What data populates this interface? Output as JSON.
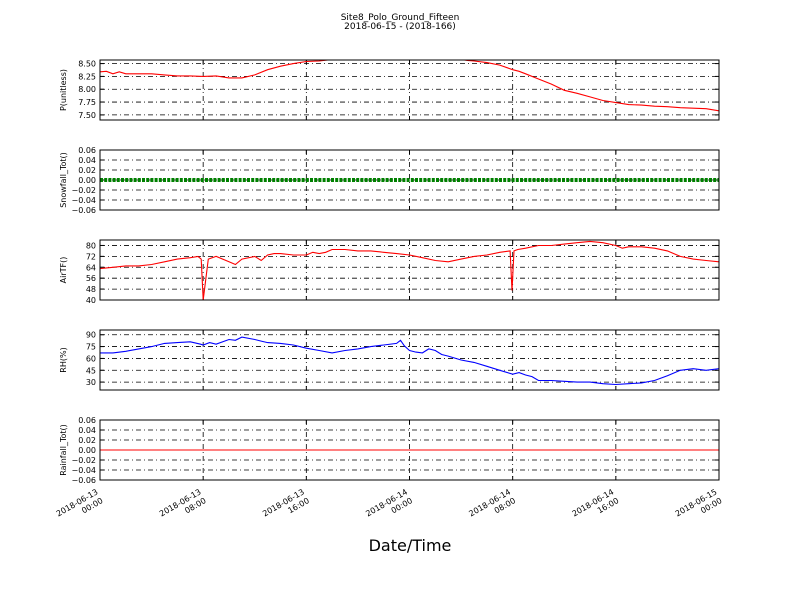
{
  "title": "Site8_Polo_Ground_Fifteen",
  "subtitle": "2018-06-15 - (2018-166)",
  "xlabel": "Date/Time",
  "x_ticks": [
    {
      "t": 0,
      "line1": "2018-06-13",
      "line2": "00:00"
    },
    {
      "t": 8,
      "line1": "2018-06-13",
      "line2": "08:00"
    },
    {
      "t": 16,
      "line1": "2018-06-13",
      "line2": "16:00"
    },
    {
      "t": 24,
      "line1": "2018-06-14",
      "line2": "00:00"
    },
    {
      "t": 32,
      "line1": "2018-06-14",
      "line2": "08:00"
    },
    {
      "t": 40,
      "line1": "2018-06-14",
      "line2": "16:00"
    },
    {
      "t": 48,
      "line1": "2018-06-15",
      "line2": "00:00"
    }
  ],
  "chart_data": [
    {
      "type": "line",
      "ylabel": "P(unitless)",
      "ylim": [
        7.4,
        8.57
      ],
      "yticks": [
        7.5,
        7.75,
        8.0,
        8.25,
        8.5
      ],
      "ytick_labels": [
        "7.50",
        "7.75",
        "8.00",
        "8.25",
        "8.50"
      ],
      "grid": true,
      "color": "#ff0000",
      "series": [
        {
          "x": [
            0,
            0.5,
            1,
            1.5,
            2,
            3,
            4,
            5,
            6,
            7,
            8,
            9,
            10,
            11,
            12,
            13,
            14,
            15,
            16,
            17,
            18,
            20,
            22,
            24,
            26,
            28,
            28.5,
            29,
            30,
            31,
            32,
            32.5,
            33,
            34,
            35,
            36,
            37,
            38,
            39,
            40,
            41,
            42,
            43,
            44,
            45,
            46,
            47,
            48
          ],
          "y": [
            8.34,
            8.35,
            8.3,
            8.34,
            8.3,
            8.3,
            8.3,
            8.28,
            8.26,
            8.26,
            8.25,
            8.26,
            8.22,
            8.22,
            8.28,
            8.38,
            8.45,
            8.5,
            8.54,
            8.55,
            8.58,
            8.59,
            8.59,
            8.59,
            8.59,
            8.58,
            8.56,
            8.55,
            8.52,
            8.47,
            8.38,
            8.35,
            8.3,
            8.2,
            8.1,
            7.98,
            7.92,
            7.85,
            7.78,
            7.74,
            7.7,
            7.69,
            7.67,
            7.66,
            7.64,
            7.63,
            7.62,
            7.58
          ]
        }
      ]
    },
    {
      "type": "line",
      "ylabel": "Snowfall_Tot()",
      "ylim": [
        -0.06,
        0.06
      ],
      "yticks": [
        -0.06,
        -0.04,
        -0.02,
        0.0,
        0.02,
        0.04,
        0.06
      ],
      "ytick_labels": [
        "−0.06",
        "−0.04",
        "−0.02",
        "0.00",
        "0.02",
        "0.04",
        "0.06"
      ],
      "grid": true,
      "color": "#008000",
      "marker": "dot",
      "series": [
        {
          "x": [
            0,
            48
          ],
          "y": [
            0,
            0
          ]
        }
      ]
    },
    {
      "type": "line",
      "ylabel": "AirTF()",
      "ylim": [
        40,
        84
      ],
      "yticks": [
        40,
        48,
        56,
        64,
        72,
        80
      ],
      "ytick_labels": [
        "40",
        "48",
        "56",
        "64",
        "72",
        "80"
      ],
      "grid": true,
      "color": "#ff0000",
      "series": [
        {
          "x": [
            0,
            1,
            2,
            3,
            4,
            5,
            6,
            7,
            7.6,
            7.85,
            8.0,
            8.4,
            9,
            10,
            10.5,
            11,
            12,
            12.5,
            13,
            13.5,
            14,
            15,
            16,
            16.5,
            17,
            17.5,
            18,
            19,
            20,
            21,
            22,
            23,
            24,
            25,
            26,
            27,
            28,
            29,
            30,
            31,
            31.8,
            31.95,
            32.1,
            32.4,
            33,
            34,
            35,
            36,
            37,
            38,
            39,
            40,
            40.5,
            41,
            42,
            43,
            44,
            45,
            46,
            47,
            48
          ],
          "y": [
            63,
            64,
            65,
            65,
            66,
            68,
            70,
            71,
            72,
            70,
            40,
            70,
            72,
            68,
            66,
            70,
            72,
            69,
            73,
            74,
            74,
            73,
            73,
            75,
            74,
            75,
            77,
            77,
            76,
            76,
            75,
            74,
            73,
            71,
            69,
            68,
            70,
            72,
            73,
            75,
            76,
            47,
            76,
            77,
            78,
            80,
            80,
            81,
            82,
            83,
            82,
            80,
            78,
            79,
            79,
            78,
            76,
            72,
            70,
            69,
            68
          ]
        }
      ]
    },
    {
      "type": "line",
      "ylabel": "RH(%)",
      "ylim": [
        20,
        96
      ],
      "yticks": [
        30,
        45,
        60,
        75,
        90
      ],
      "ytick_labels": [
        "30",
        "45",
        "60",
        "75",
        "90"
      ],
      "grid": true,
      "color": "#0000ff",
      "series": [
        {
          "x": [
            0,
            1,
            2,
            3,
            4,
            5,
            6,
            7,
            7.8,
            8,
            8.5,
            9,
            10,
            10.5,
            11,
            12,
            12.5,
            13,
            14,
            15,
            16,
            17,
            18,
            19,
            20,
            21,
            22,
            23,
            23.3,
            23.6,
            24,
            24.5,
            25,
            25.5,
            26,
            26.5,
            27,
            28,
            29,
            30,
            31,
            32,
            32.5,
            33,
            33.5,
            34,
            35,
            36,
            37,
            38,
            39,
            40,
            41,
            42,
            43,
            44,
            45,
            46,
            47,
            48
          ],
          "y": [
            67,
            67,
            69,
            72,
            75,
            79,
            80,
            81,
            78,
            77,
            80,
            78,
            84,
            83,
            87,
            84,
            82,
            80,
            79,
            77,
            73,
            70,
            67,
            70,
            72,
            75,
            77,
            79,
            83,
            76,
            70,
            68,
            67,
            72,
            70,
            65,
            63,
            58,
            55,
            50,
            45,
            40,
            42,
            39,
            37,
            32,
            32,
            31,
            30,
            30,
            28,
            27,
            28,
            29,
            32,
            38,
            45,
            47,
            45,
            47
          ]
        }
      ]
    },
    {
      "type": "line",
      "ylabel": "Rainfall_Tot()",
      "ylim": [
        -0.06,
        0.06
      ],
      "yticks": [
        -0.06,
        -0.04,
        -0.02,
        0.0,
        0.02,
        0.04,
        0.06
      ],
      "ytick_labels": [
        "−0.06",
        "−0.04",
        "−0.02",
        "0.00",
        "0.02",
        "0.04",
        "0.06"
      ],
      "grid": true,
      "color": "#ff0000",
      "series": [
        {
          "x": [
            0,
            48
          ],
          "y": [
            0,
            0
          ]
        }
      ]
    }
  ]
}
